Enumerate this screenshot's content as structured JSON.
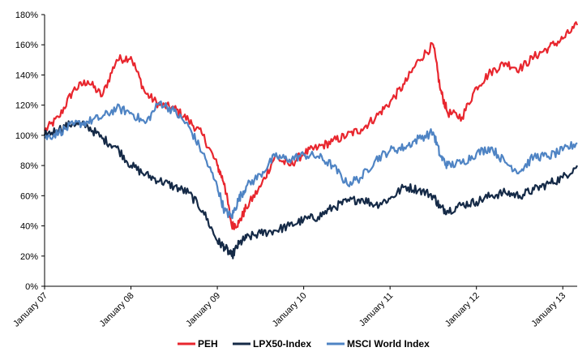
{
  "chart_data": {
    "type": "line",
    "title": "",
    "xlabel": "",
    "ylabel": "",
    "ylim": [
      0,
      180
    ],
    "yticks": [
      "0%",
      "20%",
      "40%",
      "60%",
      "80%",
      "100%",
      "120%",
      "140%",
      "160%",
      "180%"
    ],
    "yticks_values": [
      0,
      20,
      40,
      60,
      80,
      100,
      120,
      140,
      160,
      180
    ],
    "xticks": [
      "January 07",
      "January 08",
      "January 09",
      "January 10",
      "January 11",
      "January 12",
      "January 13"
    ],
    "xticks_values": [
      "2007-01",
      "2008-01",
      "2009-01",
      "2010-01",
      "2011-01",
      "2012-01",
      "2013-01"
    ],
    "x_range": [
      "2007-01",
      "2013-03"
    ],
    "grid": false,
    "legend_position": "bottom",
    "x": [
      "2007-01",
      "2007-03",
      "2007-05",
      "2007-07",
      "2007-09",
      "2007-11",
      "2008-01",
      "2008-03",
      "2008-05",
      "2008-07",
      "2008-09",
      "2008-11",
      "2009-01",
      "2009-02",
      "2009-03",
      "2009-04",
      "2009-05",
      "2009-07",
      "2009-09",
      "2009-11",
      "2010-01",
      "2010-03",
      "2010-05",
      "2010-07",
      "2010-09",
      "2010-11",
      "2011-01",
      "2011-03",
      "2011-05",
      "2011-07",
      "2011-08",
      "2011-09",
      "2011-11",
      "2012-01",
      "2012-03",
      "2012-05",
      "2012-07",
      "2012-09",
      "2012-11",
      "2013-01",
      "2013-03"
    ],
    "series": [
      {
        "name": "PEH",
        "color": "#e8262e",
        "values": [
          103,
          112,
          130,
          136,
          126,
          150,
          152,
          128,
          120,
          118,
          110,
          100,
          80,
          68,
          40,
          42,
          52,
          66,
          86,
          80,
          88,
          92,
          96,
          100,
          104,
          112,
          122,
          134,
          150,
          160,
          130,
          115,
          112,
          132,
          142,
          148,
          144,
          152,
          158,
          164,
          173
        ]
      },
      {
        "name": "LPX50-Index",
        "color": "#152a47",
        "values": [
          100,
          104,
          108,
          106,
          98,
          92,
          80,
          74,
          70,
          66,
          62,
          50,
          30,
          26,
          20,
          28,
          32,
          35,
          37,
          40,
          44,
          46,
          52,
          56,
          58,
          54,
          58,
          66,
          64,
          60,
          52,
          50,
          54,
          56,
          60,
          62,
          60,
          64,
          68,
          72,
          80
        ]
      },
      {
        "name": "MSCI World Index",
        "color": "#4f84c4",
        "values": [
          98,
          102,
          107,
          109,
          112,
          118,
          115,
          108,
          122,
          116,
          106,
          88,
          66,
          50,
          46,
          58,
          66,
          74,
          86,
          84,
          87,
          86,
          80,
          68,
          72,
          84,
          90,
          92,
          98,
          102,
          86,
          80,
          82,
          88,
          92,
          82,
          76,
          86,
          86,
          90,
          95
        ]
      }
    ]
  }
}
